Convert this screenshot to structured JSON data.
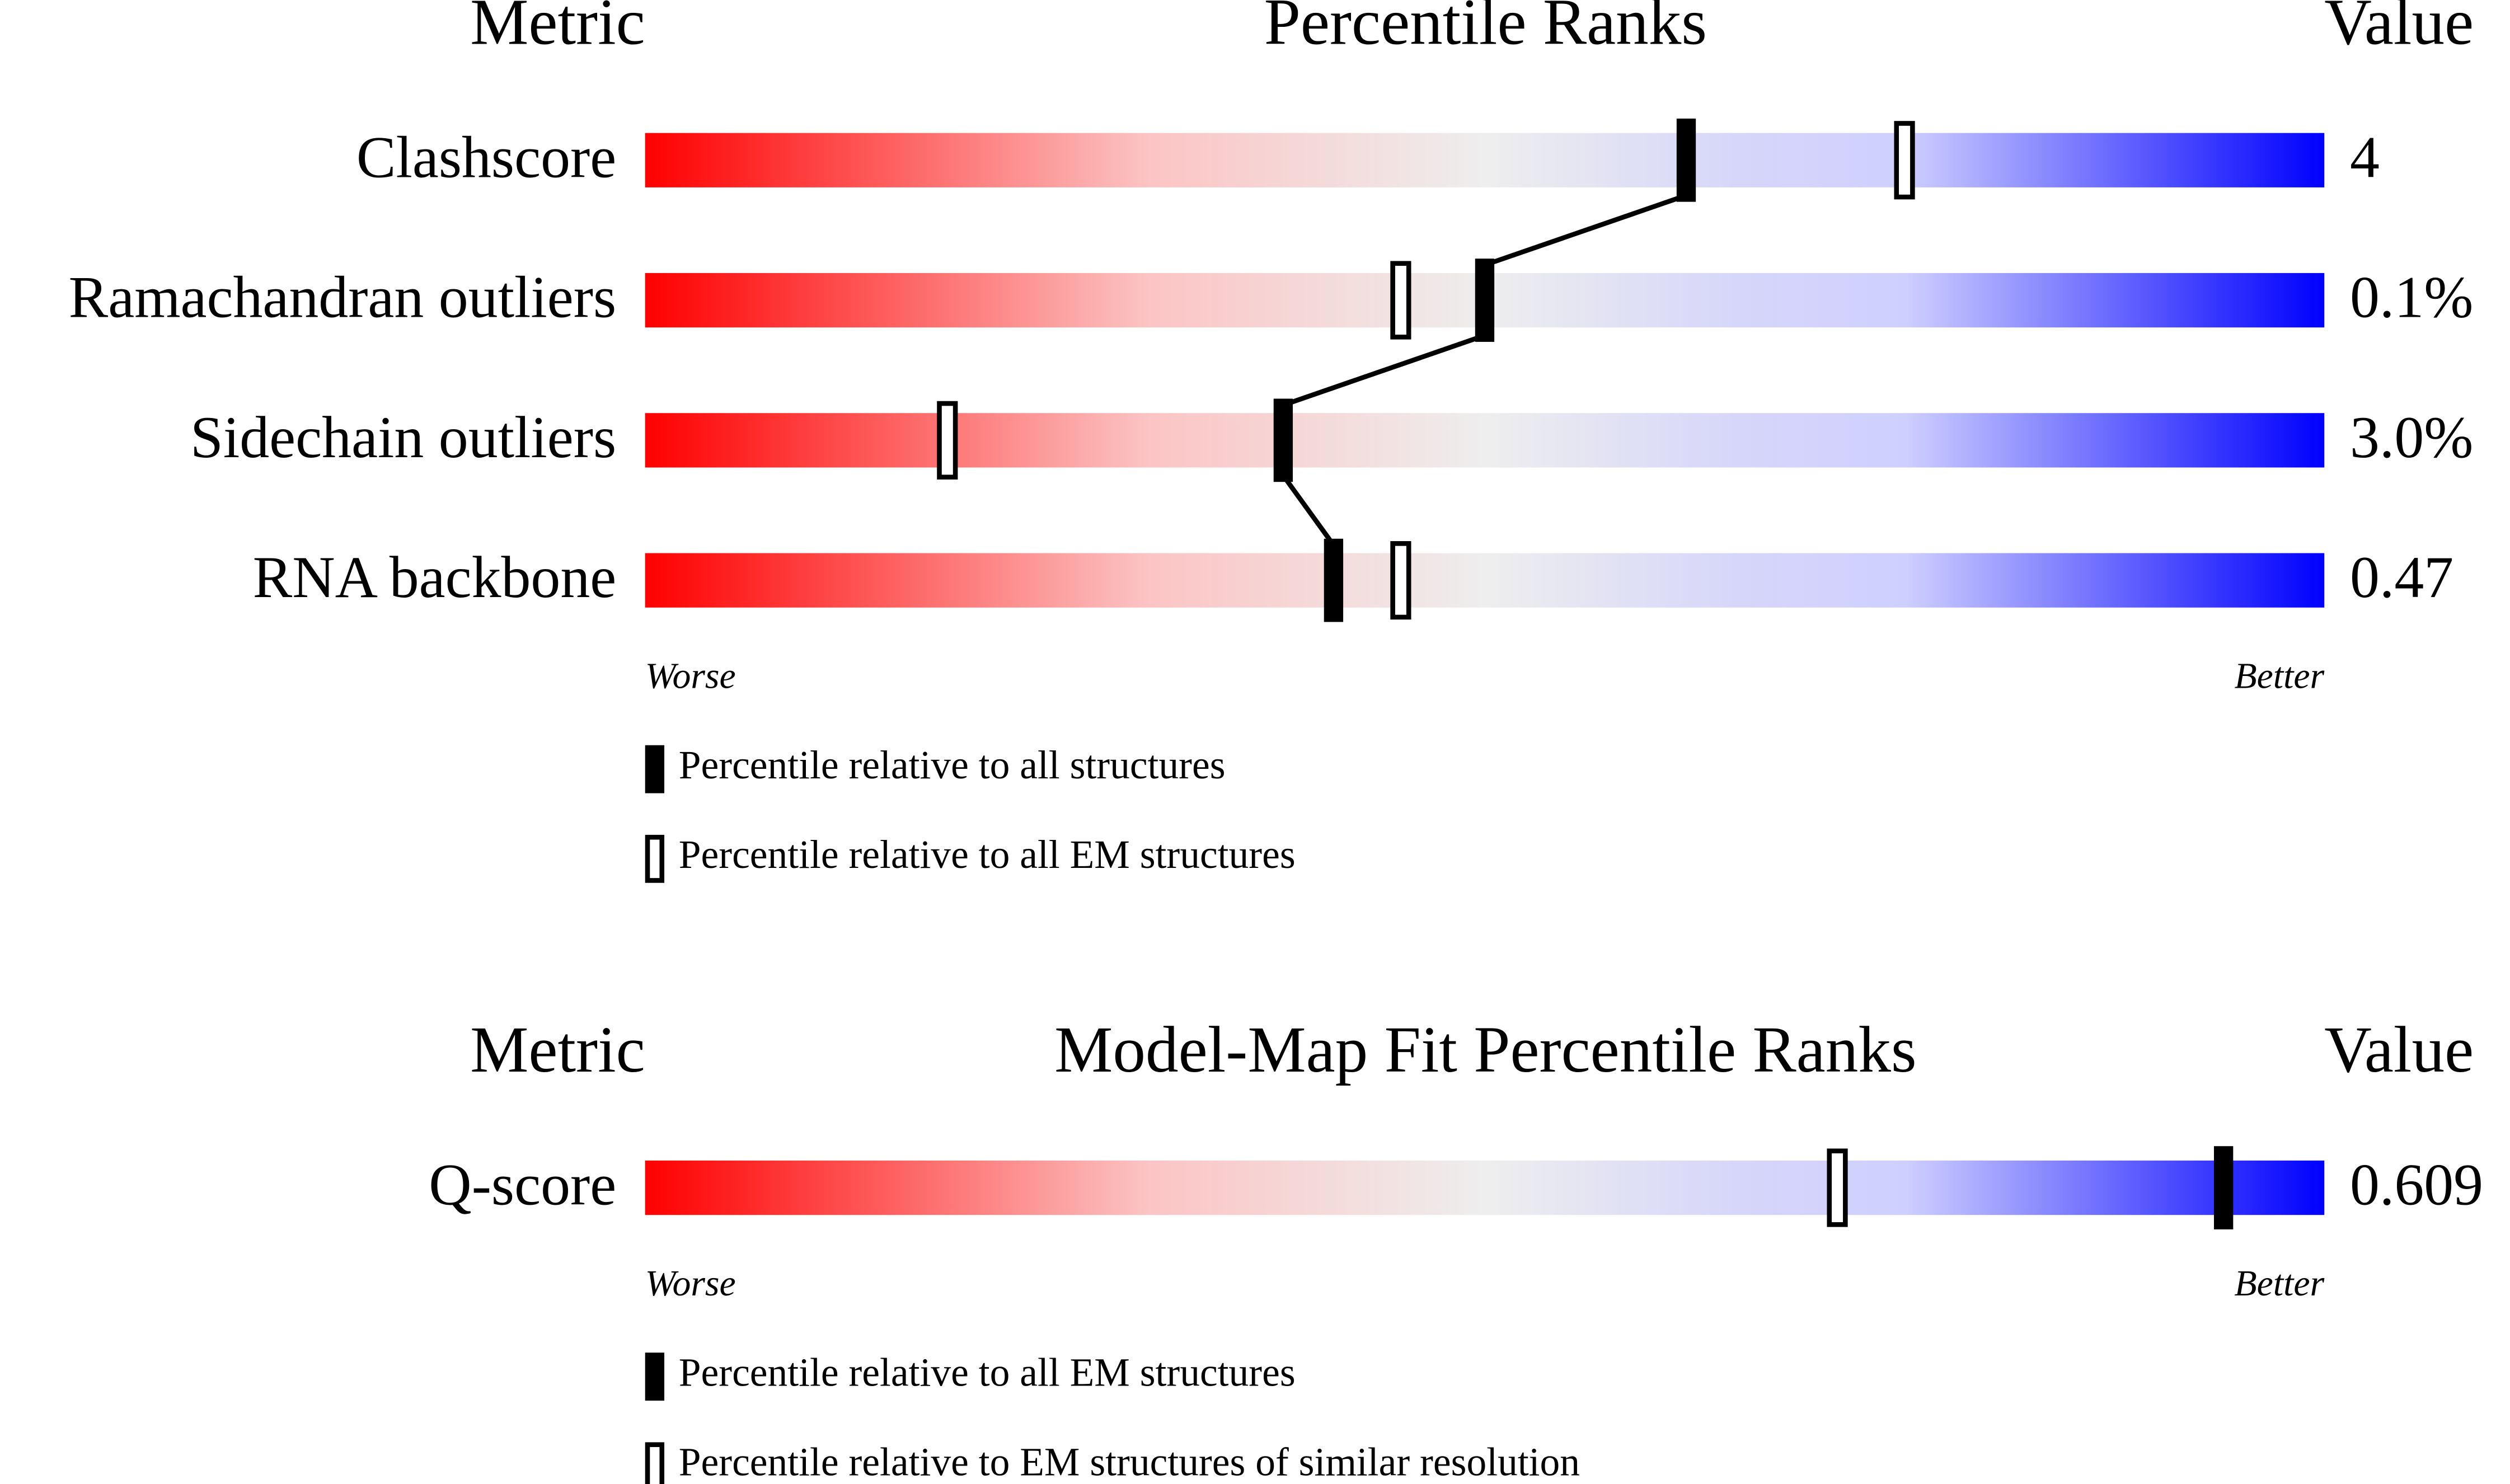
{
  "chart_data": [
    {
      "type": "percentile-slider",
      "metric_header": "Metric",
      "title": "Percentile Ranks",
      "value_header": "Value",
      "categories": [
        "Clashscore",
        "Ramachandran outliers",
        "Sidechain outliers",
        "RNA backbone"
      ],
      "metric_values": [
        "4",
        "0.1%",
        "3.0%",
        "0.47"
      ],
      "xlim": [
        0,
        100
      ],
      "x_label_low": "Worse",
      "x_label_high": "Better",
      "connect": true,
      "series": [
        {
          "name": "Percentile relative to all structures",
          "color": "#000000",
          "style": "filled",
          "values": [
            62,
            50,
            38,
            41
          ]
        },
        {
          "name": "Percentile relative to all EM structures",
          "color": "#000000",
          "style": "open",
          "values": [
            75,
            45,
            18,
            45
          ]
        }
      ]
    },
    {
      "type": "percentile-slider",
      "metric_header": "Metric",
      "title": "Model-Map Fit Percentile Ranks",
      "value_header": "Value",
      "categories": [
        "Q-score"
      ],
      "metric_values": [
        "0.609"
      ],
      "xlim": [
        0,
        100
      ],
      "x_label_low": "Worse",
      "x_label_high": "Better",
      "connect": false,
      "series": [
        {
          "name": "Percentile relative to all EM structures",
          "color": "#000000",
          "style": "filled",
          "values": [
            94
          ]
        },
        {
          "name": "Percentile relative to EM structures of similar resolution",
          "color": "#000000",
          "style": "open",
          "values": [
            71
          ]
        }
      ]
    }
  ]
}
